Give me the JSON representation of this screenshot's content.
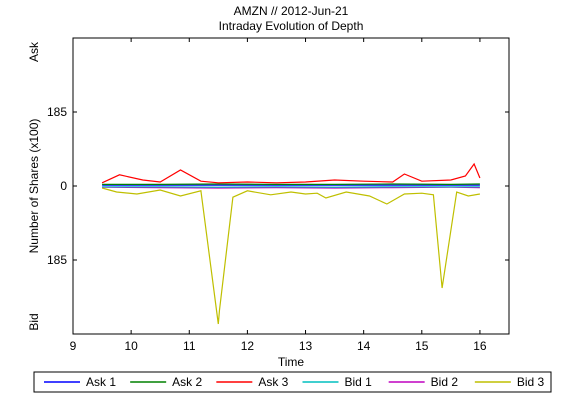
{
  "chart_data": {
    "type": "line",
    "title": "AMZN // 2012-Jun-21",
    "subtitle": "Intraday Evolution of Depth",
    "xlabel": "Time",
    "ylabel": "Number of Shares (x100)",
    "ask_label": "Ask",
    "bid_label": "Bid",
    "xlim": [
      9,
      16.5
    ],
    "ylim": [
      -370,
      370
    ],
    "x_ticks": [
      9,
      10,
      11,
      12,
      13,
      14,
      15,
      16
    ],
    "y_ticks": [
      {
        "value": 185,
        "label": "185"
      },
      {
        "value": 0,
        "label": "0"
      },
      {
        "value": -185,
        "label": "185"
      }
    ],
    "legend": {
      "placement": "bottom",
      "entries": [
        {
          "name": "Ask 1",
          "color": "#0000ff"
        },
        {
          "name": "Ask 2",
          "color": "#008000"
        },
        {
          "name": "Ask 3",
          "color": "#ff0000"
        },
        {
          "name": "Bid 1",
          "color": "#00bfbf"
        },
        {
          "name": "Bid 2",
          "color": "#bf00bf"
        },
        {
          "name": "Bid 3",
          "color": "#bfbf00"
        }
      ]
    },
    "series": [
      {
        "name": "Bid 3",
        "color": "#bfbf00",
        "x": [
          9.5,
          9.75,
          10.1,
          10.5,
          10.85,
          11.2,
          11.5,
          11.52,
          11.75,
          12.0,
          12.4,
          12.75,
          13.0,
          13.2,
          13.35,
          13.7,
          14.1,
          14.4,
          14.7,
          15.0,
          15.2,
          15.35,
          15.6,
          15.8,
          16.0
        ],
        "values": [
          -5,
          -15,
          -20,
          -10,
          -25,
          -12,
          -345,
          -310,
          -28,
          -12,
          -22,
          -15,
          -20,
          -18,
          -30,
          -15,
          -25,
          -45,
          -20,
          -18,
          -22,
          -255,
          -15,
          -25,
          -20
        ]
      },
      {
        "name": "Bid 2",
        "color": "#bf00bf",
        "x": [
          9.5,
          10.5,
          11.5,
          12.5,
          13.5,
          14.5,
          15.5,
          16.0
        ],
        "values": [
          -3,
          -4,
          -5,
          -4,
          -5,
          -4,
          -3,
          -4
        ]
      },
      {
        "name": "Bid 1",
        "color": "#00bfbf",
        "x": [
          9.5,
          10.5,
          11.5,
          12.5,
          13.5,
          14.5,
          15.5,
          16.0
        ],
        "values": [
          -2,
          -2,
          -3,
          -2,
          -3,
          -2,
          -2,
          -2
        ]
      },
      {
        "name": "Ask 1",
        "color": "#0000ff",
        "x": [
          9.5,
          10.5,
          11.5,
          12.5,
          13.5,
          14.5,
          15.5,
          16.0
        ],
        "values": [
          2,
          2,
          2,
          2,
          2,
          2,
          2,
          2
        ]
      },
      {
        "name": "Ask 2",
        "color": "#008000",
        "x": [
          9.5,
          10.5,
          11.5,
          12.5,
          13.5,
          14.5,
          15.5,
          16.0
        ],
        "values": [
          4,
          4,
          5,
          4,
          4,
          5,
          4,
          5
        ]
      },
      {
        "name": "Ask 3",
        "color": "#ff0000",
        "x": [
          9.5,
          9.8,
          10.2,
          10.5,
          10.85,
          11.2,
          11.5,
          12.0,
          12.5,
          13.0,
          13.5,
          14.0,
          14.5,
          14.7,
          15.0,
          15.5,
          15.75,
          15.9,
          16.0
        ],
        "values": [
          8,
          28,
          15,
          10,
          40,
          12,
          8,
          10,
          8,
          10,
          15,
          12,
          10,
          30,
          12,
          15,
          25,
          55,
          20
        ]
      }
    ]
  }
}
